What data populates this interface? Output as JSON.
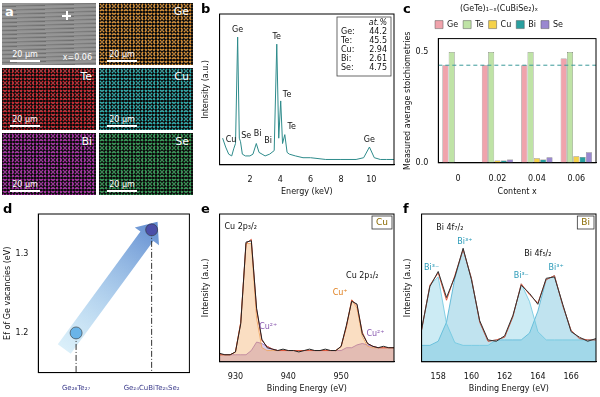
{
  "maps": {
    "panel": "a",
    "label": "x=0.06",
    "scale_bar": "20 μm",
    "tiles": [
      {
        "color": "#8c8c8c"
      },
      {
        "element": "Ge",
        "color": "#e0912e"
      },
      {
        "element": "Te",
        "color": "#d8202a"
      },
      {
        "element": "Cu",
        "color": "#25b4b4"
      },
      {
        "element": "Bi",
        "color": "#b42ab0"
      },
      {
        "element": "Se",
        "color": "#2fa055"
      }
    ]
  },
  "chart_data": [
    {
      "panel": "b",
      "type": "line",
      "xlabel": "Energy (keV)",
      "ylabel": "Intensity (a.u.)",
      "x": [
        0.2,
        0.4,
        0.6,
        0.8,
        0.93,
        1.05,
        1.19,
        1.3,
        1.38,
        1.5,
        1.7,
        2.0,
        2.2,
        2.42,
        2.6,
        2.8,
        3.0,
        3.3,
        3.6,
        3.77,
        3.9,
        4.03,
        4.15,
        4.3,
        4.45,
        4.6,
        5.0,
        5.5,
        6,
        7,
        8,
        9,
        9.5,
        9.88,
        10.2,
        10.6,
        11,
        11.5
      ],
      "series": [
        {
          "color": "#2e8b8b",
          "values": [
            0.15,
            0.1,
            0.06,
            0.05,
            0.09,
            0.12,
            0.72,
            0.15,
            0.13,
            0.06,
            0.05,
            0.05,
            0.06,
            0.12,
            0.07,
            0.06,
            0.05,
            0.06,
            0.08,
            0.68,
            0.15,
            0.36,
            0.12,
            0.17,
            0.07,
            0.06,
            0.05,
            0.04,
            0.04,
            0.03,
            0.03,
            0.03,
            0.04,
            0.1,
            0.04,
            0.03,
            0.03,
            0.03
          ]
        }
      ],
      "xlim": [
        0,
        11.5
      ],
      "xticks": [
        2,
        4,
        6,
        8,
        10
      ],
      "ylim": [
        0,
        0.85
      ],
      "tick_labels": "x",
      "annotations": [
        {
          "text": "Ge",
          "x": 1.19,
          "y": 0.74,
          "color": "#111111"
        },
        {
          "text": "Cu",
          "x": 0.75,
          "y": 0.12,
          "color": "#111111"
        },
        {
          "text": "Se",
          "x": 1.75,
          "y": 0.14,
          "color": "#111111"
        },
        {
          "text": "Bi",
          "x": 2.5,
          "y": 0.15,
          "color": "#111111"
        },
        {
          "text": "Bi",
          "x": 3.2,
          "y": 0.11,
          "color": "#111111"
        },
        {
          "text": "Te",
          "x": 3.77,
          "y": 0.7,
          "color": "#111111"
        },
        {
          "text": "Te",
          "x": 4.45,
          "y": 0.37,
          "color": "#111111"
        },
        {
          "text": "Te",
          "x": 4.75,
          "y": 0.19,
          "color": "#111111"
        },
        {
          "text": "Ge",
          "x": 9.88,
          "y": 0.12,
          "color": "#111111"
        }
      ],
      "inset": {
        "title": "at.%",
        "rows": [
          {
            "label": "Ge:",
            "value": 44.2
          },
          {
            "label": "Te:",
            "value": 45.5
          },
          {
            "label": "Cu:",
            "value": 2.94
          },
          {
            "label": "Bi:",
            "value": 2.61
          },
          {
            "label": "Se:",
            "value": 4.75
          }
        ]
      }
    },
    {
      "panel": "c",
      "type": "bar",
      "title": "(GeTe)₁₋ₓ(CuBiSe₂)ₓ",
      "xlabel": "Content x",
      "ylabel": "Measured average stoichiometries",
      "categories": [
        "0",
        "0.02",
        "0.04",
        "0.06"
      ],
      "series": [
        {
          "name": "Ge",
          "color": "#f0a3ac",
          "values": [
            0.44,
            0.44,
            0.44,
            0.47
          ]
        },
        {
          "name": "Te",
          "color": "#bfe3a6",
          "values": [
            0.5,
            0.5,
            0.5,
            0.5
          ]
        },
        {
          "name": "Cu",
          "color": "#f5d24a",
          "values": [
            0,
            0.01,
            0.02,
            0.03
          ]
        },
        {
          "name": "Bi",
          "color": "#2aa0a0",
          "values": [
            0,
            0.01,
            0.015,
            0.026
          ]
        },
        {
          "name": "Se",
          "color": "#9a88d0",
          "values": [
            0,
            0.015,
            0.025,
            0.048
          ]
        }
      ],
      "ylim": [
        0,
        0.56
      ],
      "yticks": [
        {
          "value": 0,
          "label": "0.0"
        },
        {
          "value": 0.5,
          "label": "0.5"
        }
      ],
      "hline": {
        "value": 0.44,
        "color": "#3a9a9a",
        "line_style": "dashed"
      },
      "legend": "top"
    },
    {
      "panel": "d",
      "type": "scatter",
      "ylabel": "Ef of Ge vacancies (eV)",
      "categories": [
        "Ge₂₆Te₂₇",
        "Ge₂₄CuBiTe₂₅Se₂"
      ],
      "values": [
        1.2,
        1.33
      ],
      "colors": [
        "#6ab4e8",
        "#4b4fa8"
      ],
      "ylim": [
        1.15,
        1.35
      ],
      "yticks": [
        1.2,
        1.3
      ]
    },
    {
      "panel": "e",
      "type": "line",
      "tag": "Cu",
      "xlabel": "Binding Energy (eV)",
      "ylabel": "Intensity (a.u.)",
      "x": [
        927,
        928,
        929,
        930,
        931,
        932,
        933,
        934,
        935,
        936,
        937,
        938,
        939,
        940,
        941,
        942,
        943,
        944,
        945,
        946,
        947,
        948,
        949,
        950,
        951,
        952,
        953,
        954,
        955,
        956,
        957,
        958,
        959,
        960
      ],
      "series": [
        {
          "color": "#222222",
          "values": [
            0.06,
            0.05,
            0.05,
            0.07,
            0.27,
            0.85,
            0.86,
            0.38,
            0.16,
            0.1,
            0.09,
            0.08,
            0.09,
            0.08,
            0.08,
            0.07,
            0.08,
            0.09,
            0.08,
            0.08,
            0.09,
            0.08,
            0.08,
            0.11,
            0.26,
            0.43,
            0.41,
            0.2,
            0.13,
            0.11,
            0.1,
            0.11,
            0.1,
            0.1
          ]
        },
        {
          "color": "#e0553a",
          "values": [
            0.05,
            0.05,
            0.05,
            0.07,
            0.28,
            0.84,
            0.87,
            0.37,
            0.15,
            0.11,
            0.09,
            0.08,
            0.08,
            0.08,
            0.08,
            0.08,
            0.08,
            0.08,
            0.08,
            0.08,
            0.08,
            0.08,
            0.08,
            0.11,
            0.25,
            0.44,
            0.4,
            0.21,
            0.13,
            0.11,
            0.1,
            0.1,
            0.1,
            0.1
          ]
        },
        {
          "type": "area",
          "color": "#f0a050",
          "values": [
            0.05,
            0.05,
            0.05,
            0.07,
            0.28,
            0.84,
            0.84,
            0.31,
            0.1,
            0.08,
            0.08,
            0.08,
            0.08,
            0.08,
            0.08,
            0.08,
            0.08,
            0.08,
            0.08,
            0.08,
            0.08,
            0.08,
            0.08,
            0.11,
            0.25,
            0.44,
            0.38,
            0.18,
            0.11,
            0.1,
            0.1,
            0.1,
            0.1,
            0.1
          ]
        },
        {
          "type": "area",
          "color": "#9a6ac0",
          "values": [
            0.05,
            0.05,
            0.05,
            0.05,
            0.05,
            0.05,
            0.08,
            0.14,
            0.13,
            0.11,
            0.09,
            0.08,
            0.08,
            0.08,
            0.08,
            0.08,
            0.08,
            0.08,
            0.08,
            0.08,
            0.08,
            0.08,
            0.08,
            0.08,
            0.1,
            0.1,
            0.12,
            0.13,
            0.12,
            0.11,
            0.1,
            0.1,
            0.1,
            0.1
          ]
        }
      ],
      "xlim": [
        927,
        960
      ],
      "xticks": [
        930,
        940,
        950
      ],
      "ylim": [
        0,
        1.05
      ],
      "tick_labels": "x",
      "annotations": [
        {
          "text": "Cu 2p₃/₂",
          "x": 931,
          "y": 0.93,
          "color": "#111111"
        },
        {
          "text": "Cu²⁺",
          "x": 936.2,
          "y": 0.22,
          "color": "#8a5ab0"
        },
        {
          "text": "Cu⁺",
          "x": 949.8,
          "y": 0.46,
          "color": "#e08020"
        },
        {
          "text": "Cu 2p₁/₂",
          "x": 954,
          "y": 0.58,
          "color": "#111111"
        },
        {
          "text": "Cu²⁺",
          "x": 956.5,
          "y": 0.17,
          "color": "#8a5ab0"
        }
      ]
    },
    {
      "panel": "f",
      "type": "line",
      "tag": "Bi",
      "xlabel": "Binding Energy (eV)",
      "ylabel": "Intensity (a.u.)",
      "x": [
        157,
        157.5,
        158,
        158.5,
        159,
        159.5,
        160,
        160.5,
        161,
        161.5,
        162,
        162.5,
        163,
        163.5,
        164,
        164.5,
        165,
        165.5,
        166,
        166.5,
        167,
        167.5
      ],
      "series": [
        {
          "color": "#333333",
          "values": [
            0.24,
            0.55,
            0.66,
            0.47,
            0.62,
            0.83,
            0.6,
            0.3,
            0.16,
            0.15,
            0.19,
            0.34,
            0.56,
            0.5,
            0.42,
            0.61,
            0.62,
            0.42,
            0.22,
            0.18,
            0.15,
            0.17
          ]
        },
        {
          "color": "#e0553a",
          "values": [
            0.23,
            0.56,
            0.65,
            0.45,
            0.63,
            0.82,
            0.61,
            0.29,
            0.15,
            0.16,
            0.18,
            0.33,
            0.57,
            0.49,
            0.43,
            0.6,
            0.63,
            0.41,
            0.23,
            0.17,
            0.16,
            0.16
          ]
        },
        {
          "type": "area",
          "color": "#6cc6e0",
          "values": [
            0.23,
            0.56,
            0.62,
            0.28,
            0.14,
            0.12,
            0.12,
            0.12,
            0.12,
            0.16,
            0.18,
            0.33,
            0.57,
            0.44,
            0.22,
            0.16,
            0.16,
            0.16,
            0.16,
            0.16,
            0.16,
            0.16
          ]
        },
        {
          "type": "area",
          "color": "#4aaed0",
          "values": [
            0.12,
            0.12,
            0.15,
            0.29,
            0.61,
            0.82,
            0.61,
            0.29,
            0.15,
            0.16,
            0.16,
            0.16,
            0.16,
            0.21,
            0.37,
            0.6,
            0.63,
            0.41,
            0.23,
            0.17,
            0.16,
            0.16
          ]
        }
      ],
      "xlim": [
        157,
        167.5
      ],
      "xticks": [
        158,
        160,
        162,
        164,
        166
      ],
      "ylim": [
        0,
        1.08
      ],
      "tick_labels": "x",
      "annotations": [
        {
          "text": "Bi 4f₇/₂",
          "x": 158.7,
          "y": 0.95,
          "color": "#111111"
        },
        {
          "text": "Bi 4f₅/₂",
          "x": 164.0,
          "y": 0.76,
          "color": "#111111"
        },
        {
          "text": "Bi³⁻",
          "x": 157.6,
          "y": 0.66,
          "color": "#2a9ab8"
        },
        {
          "text": "Bi³⁺",
          "x": 159.6,
          "y": 0.85,
          "color": "#2a9ab8"
        },
        {
          "text": "Bi³⁻",
          "x": 163.0,
          "y": 0.6,
          "color": "#2a9ab8"
        },
        {
          "text": "Bi³⁺",
          "x": 165.1,
          "y": 0.66,
          "color": "#2a9ab8"
        }
      ]
    }
  ]
}
